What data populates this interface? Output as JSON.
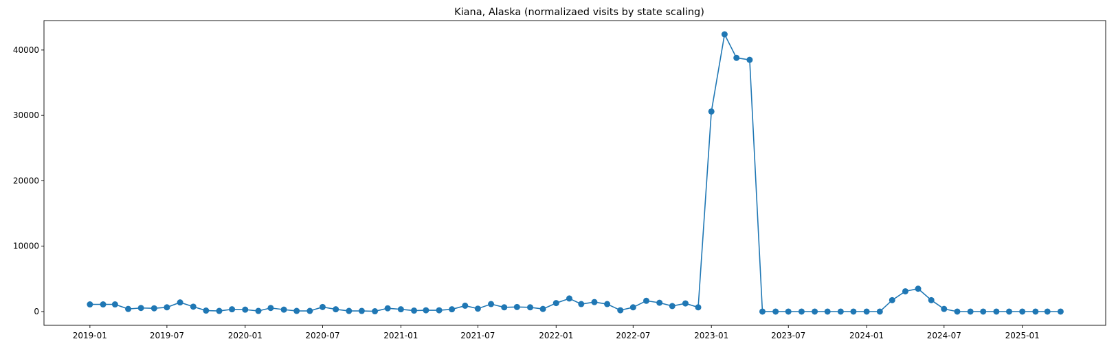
{
  "chart_data": {
    "type": "line",
    "title": "Kiana, Alaska (normalizaed visits by state scaling)",
    "xlabel": "",
    "ylabel": "",
    "ylim": [
      -2100,
      44500
    ],
    "xlim": [
      "2018-09-15",
      "2025-07-16"
    ],
    "grid": false,
    "color": "#1f77b4",
    "marker": "circle",
    "x_ticks": [
      "2019-01",
      "2019-07",
      "2020-01",
      "2020-07",
      "2021-01",
      "2021-07",
      "2022-01",
      "2022-07",
      "2023-01",
      "2023-07",
      "2024-01",
      "2024-07",
      "2025-01"
    ],
    "y_ticks": [
      0,
      10000,
      20000,
      30000,
      40000
    ],
    "x": [
      "2019-01",
      "2019-02",
      "2019-03",
      "2019-04",
      "2019-05",
      "2019-06",
      "2019-07",
      "2019-08",
      "2019-09",
      "2019-10",
      "2019-11",
      "2019-12",
      "2020-01",
      "2020-02",
      "2020-03",
      "2020-04",
      "2020-05",
      "2020-06",
      "2020-07",
      "2020-08",
      "2020-09",
      "2020-10",
      "2020-11",
      "2020-12",
      "2021-01",
      "2021-02",
      "2021-03",
      "2021-04",
      "2021-05",
      "2021-06",
      "2021-07",
      "2021-08",
      "2021-09",
      "2021-10",
      "2021-11",
      "2021-12",
      "2022-01",
      "2022-02",
      "2022-03",
      "2022-04",
      "2022-05",
      "2022-06",
      "2022-07",
      "2022-08",
      "2022-09",
      "2022-10",
      "2022-11",
      "2022-12",
      "2023-01",
      "2023-02",
      "2023-03",
      "2023-04",
      "2023-05",
      "2023-06",
      "2023-07",
      "2023-08",
      "2023-09",
      "2023-10",
      "2023-11",
      "2023-12",
      "2024-01",
      "2024-02",
      "2024-03",
      "2024-04",
      "2024-05",
      "2024-06",
      "2024-07",
      "2024-08",
      "2024-09",
      "2024-10",
      "2024-11",
      "2024-12",
      "2025-01",
      "2025-02",
      "2025-03",
      "2025-04"
    ],
    "values": [
      1100,
      1100,
      1100,
      400,
      550,
      500,
      650,
      1400,
      750,
      150,
      100,
      350,
      300,
      100,
      550,
      300,
      100,
      100,
      700,
      350,
      100,
      100,
      50,
      500,
      350,
      150,
      200,
      200,
      350,
      900,
      450,
      1150,
      650,
      700,
      650,
      400,
      1300,
      2000,
      1150,
      1450,
      1150,
      200,
      650,
      1650,
      1350,
      850,
      1250,
      650,
      30600,
      42400,
      38800,
      38500,
      0,
      0,
      0,
      0,
      0,
      0,
      0,
      0,
      0,
      0,
      1750,
      3100,
      3500,
      1750,
      400,
      0,
      0,
      0,
      0,
      0,
      0,
      0,
      0,
      0
    ]
  }
}
